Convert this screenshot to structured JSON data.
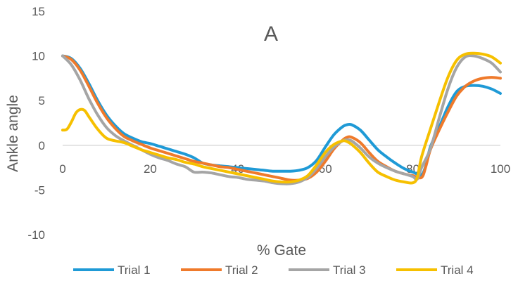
{
  "chart_data": {
    "type": "line",
    "title": "A",
    "xlabel": "% Gate",
    "ylabel": "Ankle angle",
    "xlim": [
      0,
      100
    ],
    "ylim": [
      -10,
      15
    ],
    "x_ticks": [
      "0",
      "20",
      "40",
      "60",
      "80",
      "100"
    ],
    "y_ticks": [
      "15",
      "10",
      "5",
      "0",
      "-5",
      "-10"
    ],
    "grid": false,
    "legend_position": "bottom",
    "series": [
      {
        "name": "Trial 1",
        "color": "#1f9ad6",
        "points": [
          [
            0,
            10
          ],
          [
            2,
            9.7
          ],
          [
            4,
            8.6
          ],
          [
            6,
            6.9
          ],
          [
            8,
            5
          ],
          [
            10,
            3.4
          ],
          [
            12,
            2.2
          ],
          [
            14,
            1.3
          ],
          [
            16,
            0.8
          ],
          [
            18,
            0.4
          ],
          [
            20,
            0.2
          ],
          [
            22,
            -0.1
          ],
          [
            24,
            -0.4
          ],
          [
            26,
            -0.7
          ],
          [
            28,
            -1
          ],
          [
            30,
            -1.4
          ],
          [
            32,
            -2
          ],
          [
            34,
            -2.2
          ],
          [
            36,
            -2.3
          ],
          [
            38,
            -2.4
          ],
          [
            40,
            -2.5
          ],
          [
            42,
            -2.6
          ],
          [
            44,
            -2.7
          ],
          [
            46,
            -2.8
          ],
          [
            48,
            -2.9
          ],
          [
            50,
            -2.9
          ],
          [
            52,
            -2.9
          ],
          [
            54,
            -2.8
          ],
          [
            56,
            -2.5
          ],
          [
            58,
            -1.7
          ],
          [
            60,
            -0.2
          ],
          [
            62,
            1.2
          ],
          [
            64,
            2.1
          ],
          [
            65,
            2.3
          ],
          [
            66,
            2.3
          ],
          [
            68,
            1.7
          ],
          [
            70,
            0.6
          ],
          [
            72,
            -0.5
          ],
          [
            74,
            -1.3
          ],
          [
            76,
            -2
          ],
          [
            78,
            -2.6
          ],
          [
            80,
            -3
          ],
          [
            82,
            -3.3
          ],
          [
            83,
            -2.2
          ],
          [
            84,
            -0.2
          ],
          [
            86,
            2
          ],
          [
            88,
            4.3
          ],
          [
            90,
            6
          ],
          [
            92,
            6.6
          ],
          [
            94,
            6.7
          ],
          [
            96,
            6.6
          ],
          [
            98,
            6.3
          ],
          [
            100,
            5.8
          ]
        ]
      },
      {
        "name": "Trial 2",
        "color": "#ef7a2b",
        "points": [
          [
            0,
            10
          ],
          [
            2,
            9.6
          ],
          [
            4,
            8.4
          ],
          [
            6,
            6.6
          ],
          [
            8,
            4.7
          ],
          [
            10,
            3.1
          ],
          [
            12,
            1.9
          ],
          [
            14,
            1
          ],
          [
            16,
            0.5
          ],
          [
            18,
            0.1
          ],
          [
            20,
            -0.3
          ],
          [
            22,
            -0.6
          ],
          [
            24,
            -0.9
          ],
          [
            26,
            -1.2
          ],
          [
            28,
            -1.5
          ],
          [
            30,
            -1.8
          ],
          [
            32,
            -2
          ],
          [
            34,
            -2.2
          ],
          [
            36,
            -2.4
          ],
          [
            38,
            -2.5
          ],
          [
            40,
            -2.7
          ],
          [
            42,
            -2.9
          ],
          [
            44,
            -3.1
          ],
          [
            46,
            -3.3
          ],
          [
            48,
            -3.5
          ],
          [
            50,
            -3.7
          ],
          [
            52,
            -3.9
          ],
          [
            54,
            -3.9
          ],
          [
            56,
            -3.7
          ],
          [
            58,
            -3
          ],
          [
            60,
            -1.8
          ],
          [
            62,
            -0.4
          ],
          [
            64,
            0.6
          ],
          [
            65,
            0.9
          ],
          [
            66,
            0.9
          ],
          [
            68,
            0.3
          ],
          [
            70,
            -0.8
          ],
          [
            72,
            -1.8
          ],
          [
            74,
            -2.4
          ],
          [
            76,
            -2.9
          ],
          [
            78,
            -3.2
          ],
          [
            80,
            -3.4
          ],
          [
            82,
            -3.6
          ],
          [
            83,
            -2.3
          ],
          [
            84,
            -0.5
          ],
          [
            86,
            1.7
          ],
          [
            88,
            3.7
          ],
          [
            90,
            5.5
          ],
          [
            92,
            6.6
          ],
          [
            94,
            7.2
          ],
          [
            96,
            7.5
          ],
          [
            98,
            7.6
          ],
          [
            100,
            7.5
          ]
        ]
      },
      {
        "name": "Trial 3",
        "color": "#a5a5a5",
        "points": [
          [
            0,
            10
          ],
          [
            2,
            9
          ],
          [
            4,
            7.3
          ],
          [
            6,
            5.2
          ],
          [
            8,
            3.4
          ],
          [
            10,
            2
          ],
          [
            12,
            1.1
          ],
          [
            14,
            0.5
          ],
          [
            16,
            0
          ],
          [
            18,
            -0.5
          ],
          [
            20,
            -1
          ],
          [
            22,
            -1.4
          ],
          [
            24,
            -1.7
          ],
          [
            26,
            -2.1
          ],
          [
            28,
            -2.4
          ],
          [
            30,
            -3
          ],
          [
            32,
            -3
          ],
          [
            34,
            -3.1
          ],
          [
            36,
            -3.3
          ],
          [
            38,
            -3.5
          ],
          [
            40,
            -3.6
          ],
          [
            42,
            -3.8
          ],
          [
            44,
            -3.9
          ],
          [
            46,
            -4
          ],
          [
            48,
            -4.2
          ],
          [
            50,
            -4.3
          ],
          [
            52,
            -4.3
          ],
          [
            54,
            -4.1
          ],
          [
            56,
            -3.6
          ],
          [
            58,
            -2.6
          ],
          [
            60,
            -1.3
          ],
          [
            62,
            -0.2
          ],
          [
            64,
            0.5
          ],
          [
            65,
            0.6
          ],
          [
            66,
            0.5
          ],
          [
            68,
            -0.3
          ],
          [
            70,
            -1.3
          ],
          [
            72,
            -2
          ],
          [
            74,
            -2.5
          ],
          [
            76,
            -2.9
          ],
          [
            78,
            -3.2
          ],
          [
            80,
            -3.5
          ],
          [
            81,
            -3.8
          ],
          [
            82,
            -2.5
          ],
          [
            84,
            -0.4
          ],
          [
            86,
            3
          ],
          [
            88,
            6.3
          ],
          [
            90,
            8.7
          ],
          [
            92,
            9.9
          ],
          [
            94,
            10
          ],
          [
            96,
            9.7
          ],
          [
            98,
            9.2
          ],
          [
            100,
            8.2
          ]
        ]
      },
      {
        "name": "Trial 4",
        "color": "#f6c000",
        "points": [
          [
            0,
            1.7
          ],
          [
            1,
            1.8
          ],
          [
            2,
            2.6
          ],
          [
            3,
            3.6
          ],
          [
            4,
            4
          ],
          [
            5,
            3.9
          ],
          [
            6,
            3.2
          ],
          [
            8,
            1.8
          ],
          [
            10,
            0.8
          ],
          [
            12,
            0.5
          ],
          [
            14,
            0.3
          ],
          [
            16,
            -0.1
          ],
          [
            18,
            -0.5
          ],
          [
            20,
            -0.8
          ],
          [
            22,
            -1.1
          ],
          [
            24,
            -1.4
          ],
          [
            26,
            -1.6
          ],
          [
            28,
            -1.9
          ],
          [
            30,
            -2.1
          ],
          [
            32,
            -2.4
          ],
          [
            34,
            -2.6
          ],
          [
            36,
            -2.8
          ],
          [
            38,
            -3
          ],
          [
            40,
            -3.2
          ],
          [
            42,
            -3.4
          ],
          [
            44,
            -3.6
          ],
          [
            46,
            -3.8
          ],
          [
            48,
            -4
          ],
          [
            50,
            -4.1
          ],
          [
            52,
            -4.1
          ],
          [
            54,
            -3.9
          ],
          [
            56,
            -3.4
          ],
          [
            58,
            -2.2
          ],
          [
            60,
            -0.8
          ],
          [
            62,
            0.1
          ],
          [
            64,
            0.5
          ],
          [
            65,
            0.4
          ],
          [
            66,
            0.1
          ],
          [
            68,
            -0.8
          ],
          [
            70,
            -2
          ],
          [
            72,
            -3
          ],
          [
            74,
            -3.5
          ],
          [
            76,
            -3.9
          ],
          [
            78,
            -4.1
          ],
          [
            80,
            -4.2
          ],
          [
            81,
            -3.6
          ],
          [
            82,
            -1.3
          ],
          [
            84,
            1.8
          ],
          [
            86,
            4.8
          ],
          [
            88,
            7.6
          ],
          [
            90,
            9.5
          ],
          [
            92,
            10.2
          ],
          [
            94,
            10.3
          ],
          [
            96,
            10.2
          ],
          [
            98,
            9.9
          ],
          [
            100,
            9.2
          ]
        ]
      }
    ]
  }
}
